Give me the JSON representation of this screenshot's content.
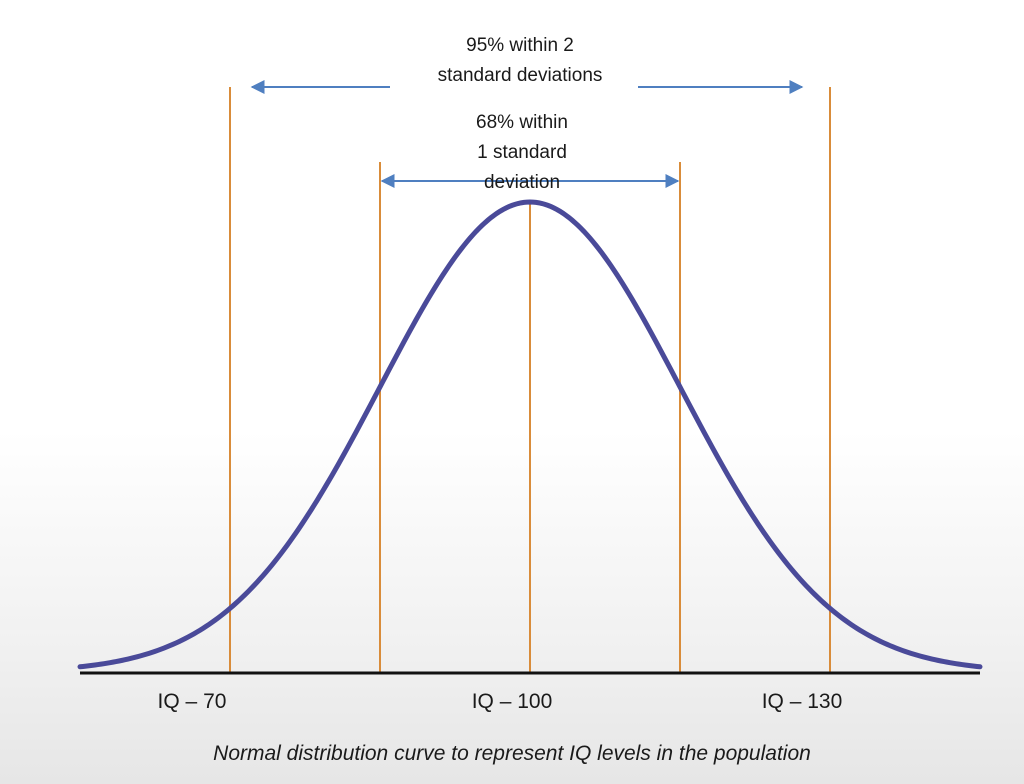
{
  "chart_data": {
    "type": "line",
    "title": "",
    "caption": "Normal distribution curve to represent IQ levels in the population",
    "xlabel": "",
    "ylabel": "",
    "mean": 100,
    "sd": 15,
    "xlim": [
      55,
      145
    ],
    "vlines": [
      70,
      85,
      100,
      115,
      130
    ],
    "tick_labels": [
      {
        "x": 70,
        "label": "IQ – 70"
      },
      {
        "x": 100,
        "label": "IQ – 100"
      },
      {
        "x": 130,
        "label": "IQ – 130"
      }
    ],
    "annotations": {
      "two_sd": {
        "line1": "95% within 2",
        "line2": "standard deviations",
        "from": 70,
        "to": 130
      },
      "one_sd": {
        "line1": "68% within",
        "line2": "1 standard",
        "line3": "deviation",
        "from": 85,
        "to": 115
      }
    },
    "colors": {
      "curve": "#4a4a99",
      "vlines": "#d98c3a",
      "arrows": "#4f7fc0",
      "axis": "#111111"
    },
    "grid": false,
    "legend": "none"
  }
}
